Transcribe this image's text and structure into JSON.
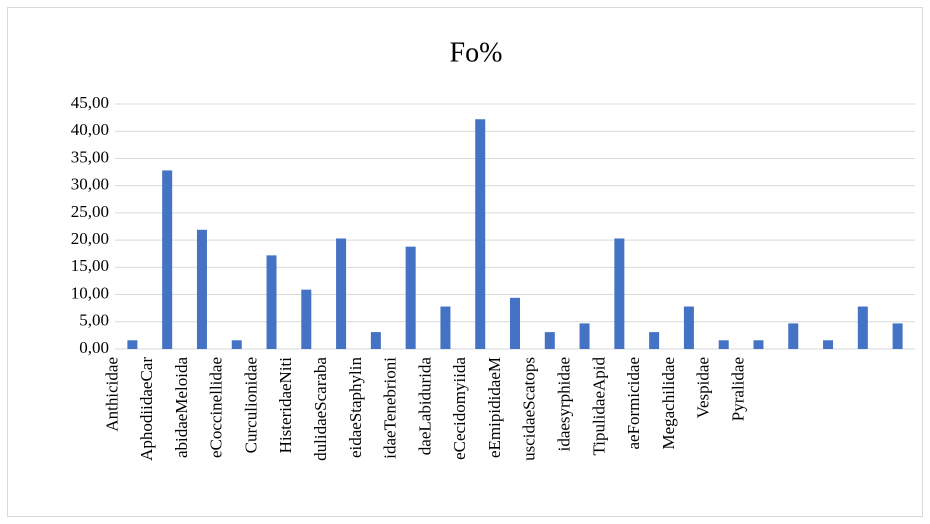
{
  "chart_data": {
    "type": "bar",
    "title": "Fo%",
    "categories": [
      "Anthicidae",
      "AphodiidaeCar",
      "abidaeMeloida",
      "eCoccinellidae",
      "Curculionidae",
      "HisteridaeNiti",
      "dulidaeScaraba",
      "eidaeStaphylin",
      "idaeTenebrioni",
      "daeLabidurida",
      "eCecidomyiida",
      "eEmipididaeM",
      "uscidaeScatops",
      "idaesyrphidae",
      "TipulidaeApid",
      "aeFormicidae",
      "Megachilidae",
      "Vespidae",
      "Pyralidae",
      null,
      null,
      null,
      null
    ],
    "values": [
      1.6,
      32.8,
      21.9,
      1.6,
      17.2,
      10.9,
      20.3,
      3.1,
      18.8,
      7.8,
      42.2,
      9.4,
      3.1,
      4.7,
      20.3,
      3.1,
      7.8,
      1.6,
      1.6,
      4.7,
      1.6,
      7.8,
      4.7
    ],
    "color": "#4472c4",
    "ylim": [
      0,
      45
    ],
    "yticks": [
      {
        "value": 0,
        "label": "0,00"
      },
      {
        "value": 5,
        "label": "5,00"
      },
      {
        "value": 10,
        "label": "10,00"
      },
      {
        "value": 15,
        "label": "15,00"
      },
      {
        "value": 20,
        "label": "20,00"
      },
      {
        "value": 25,
        "label": "25,00"
      },
      {
        "value": 30,
        "label": "30,00"
      },
      {
        "value": 35,
        "label": "35,00"
      },
      {
        "value": 40,
        "label": "40,00"
      },
      {
        "value": 45,
        "label": "45,00"
      }
    ],
    "grid": true
  }
}
